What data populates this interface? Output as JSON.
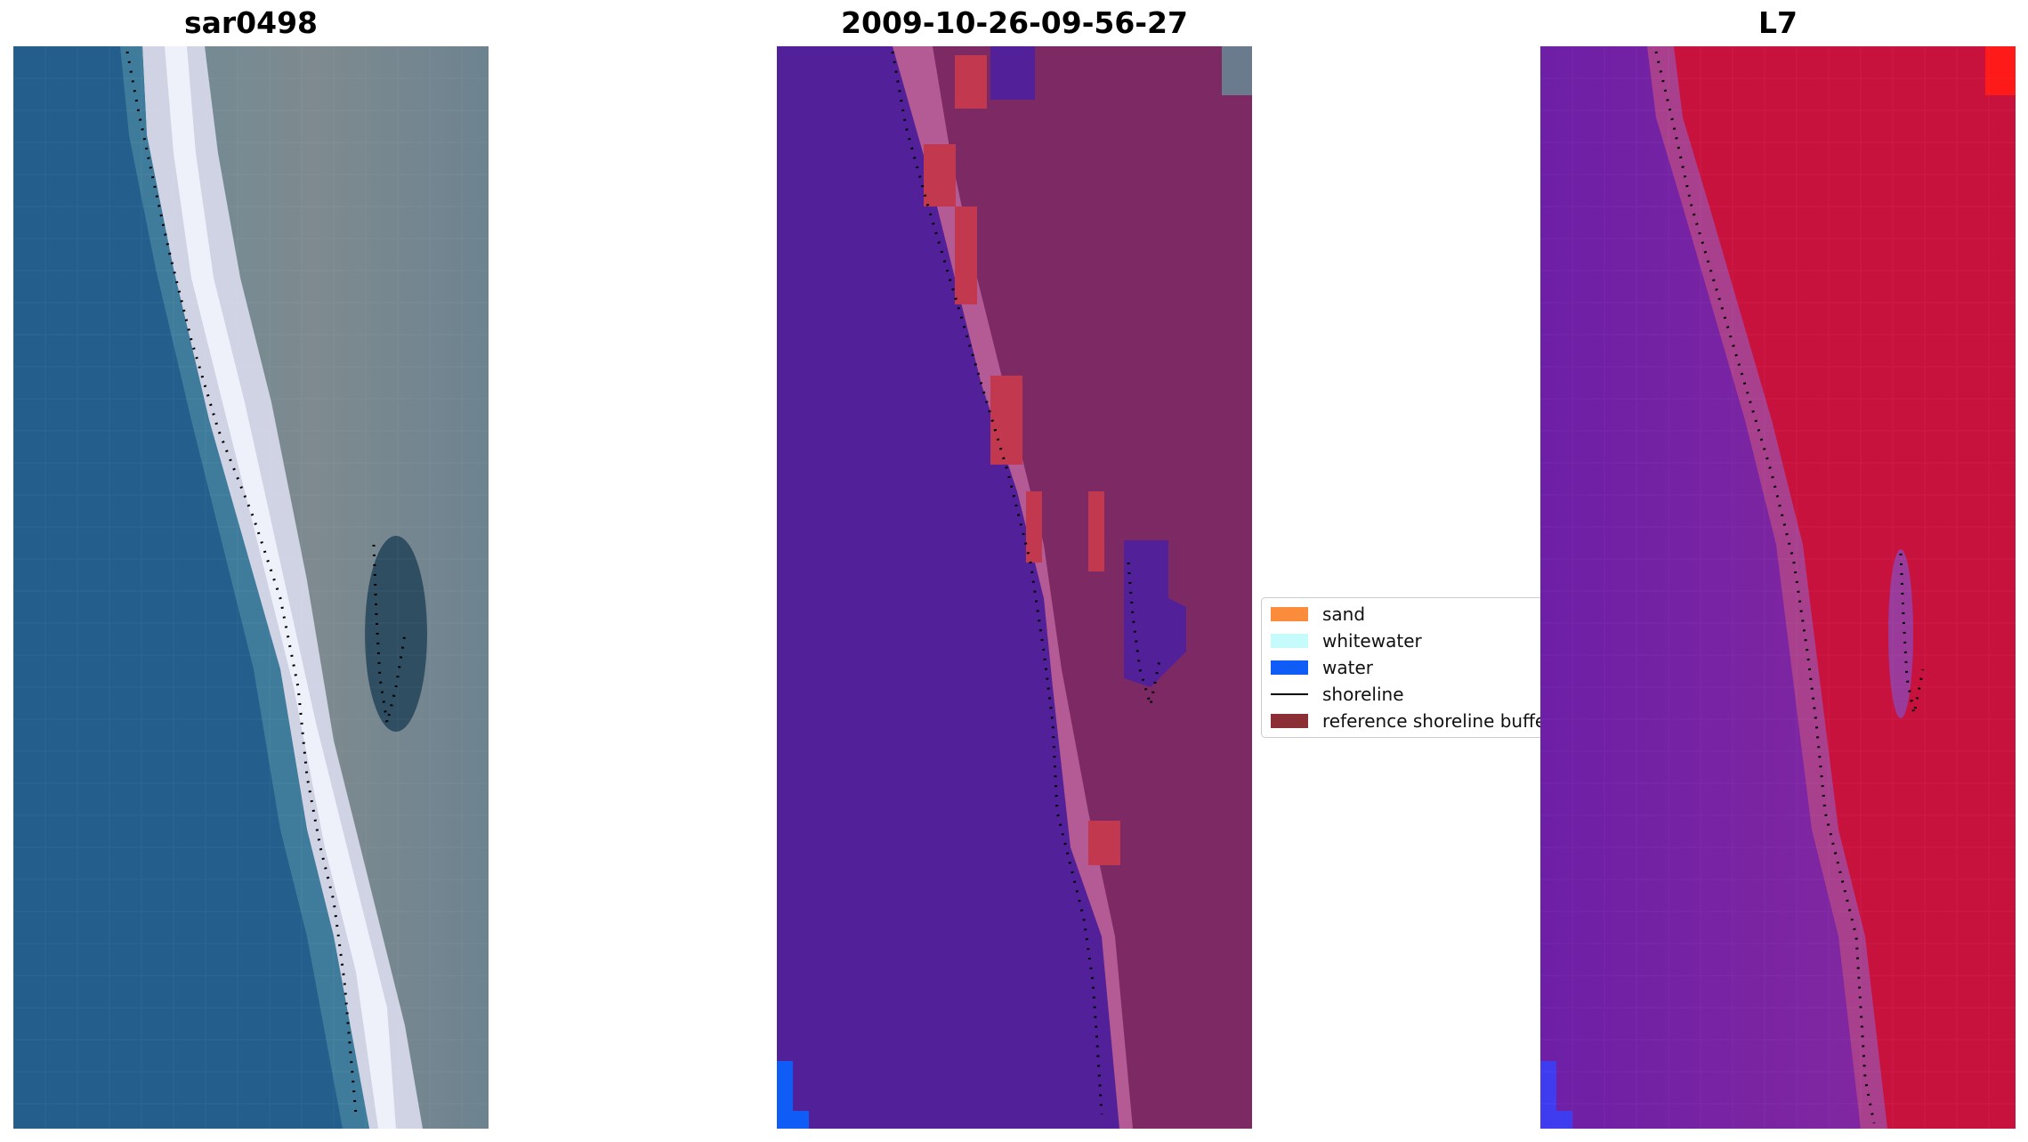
{
  "panels": [
    {
      "title": "sar0498",
      "content": "satellite RGB image with detected shoreline dots"
    },
    {
      "title": "2009-10-26-09-56-27",
      "content": "classified image overlay"
    },
    {
      "title": "L7",
      "content": "water index image"
    }
  ],
  "legend": {
    "items": [
      {
        "label": "sand",
        "color": "#fb8c3c"
      },
      {
        "label": "whitewater",
        "color": "#c6fbfb"
      },
      {
        "label": "water",
        "color": "#0f5cf7"
      },
      {
        "label": "shoreline",
        "color": "#000000"
      },
      {
        "label": "reference shoreline buffer",
        "color": "#8b2e36"
      }
    ]
  },
  "colors": {
    "sea_blue": "#245e8c",
    "class_water": "#52219a",
    "land_magenta": "#7d2a64",
    "index_water": "#7a2aa8",
    "index_land": "#c8123e"
  }
}
